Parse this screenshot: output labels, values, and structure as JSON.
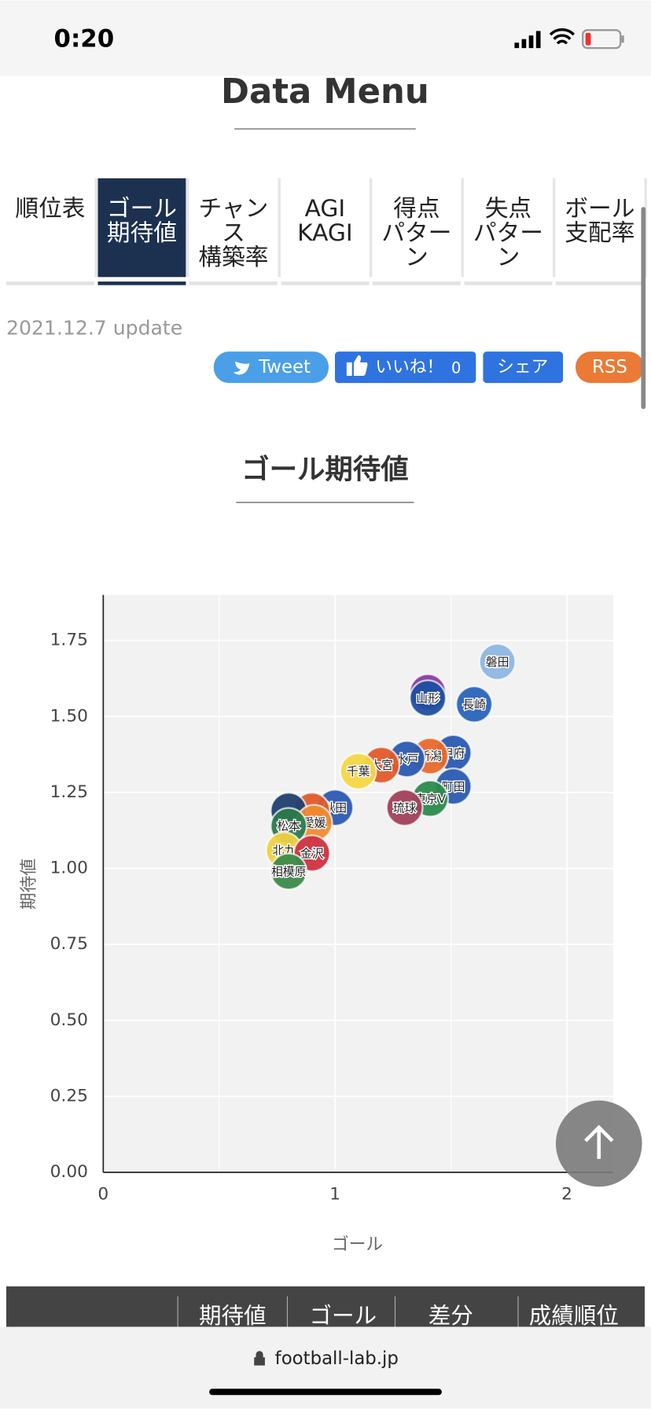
{
  "status_bar": {
    "time": "0:20"
  },
  "header": {
    "title": "Data Menu"
  },
  "tabs": [
    {
      "lines": [
        "順位表"
      ]
    },
    {
      "lines": [
        "ゴール",
        "期待値"
      ],
      "active": true
    },
    {
      "lines": [
        "チャン",
        "ス",
        "構築率"
      ]
    },
    {
      "lines": [
        "AGI",
        "KAGI"
      ]
    },
    {
      "lines": [
        "得点",
        "パター",
        "ン"
      ]
    },
    {
      "lines": [
        "失点",
        "パター",
        "ン"
      ]
    },
    {
      "lines": [
        "ボール",
        "支配率"
      ]
    }
  ],
  "update": "2021.12.7 update",
  "share": {
    "tweet": "Tweet",
    "like": "いいね！",
    "like_count": "0",
    "share": "シェア",
    "rss": "RSS"
  },
  "chart_data": {
    "type": "scatter",
    "title": "ゴール期待値",
    "x_label": "ゴール",
    "y_label": "期待値",
    "xlim": [
      0,
      2.2
    ],
    "ylim": [
      0,
      1.9
    ],
    "xticks": [
      0,
      1,
      2
    ],
    "yticks": [
      {
        "value": 0,
        "label": "0.00"
      },
      {
        "value": 0.25,
        "label": "0.25"
      },
      {
        "value": 0.5,
        "label": "0.50"
      },
      {
        "value": 0.75,
        "label": "0.75"
      },
      {
        "value": 1,
        "label": "1.00"
      },
      {
        "value": 1.25,
        "label": "1.25"
      },
      {
        "value": 1.5,
        "label": "1.50"
      },
      {
        "value": 1.75,
        "label": "1.75"
      }
    ],
    "grid": true,
    "labels": [
      "磐田",
      null,
      "山形",
      "長崎",
      "甲府",
      "新潟",
      "水戸",
      "大宮",
      "千葉",
      "町田",
      "東京V",
      "琉球",
      "秋田",
      null,
      null,
      "愛媛",
      "松本",
      "北九",
      "金沢",
      "相模原"
    ],
    "x": [
      1.7,
      1.4,
      1.4,
      1.6,
      1.51,
      1.41,
      1.31,
      1.2,
      1.1,
      1.51,
      1.41,
      1.3,
      1.0,
      0.9,
      0.8,
      0.91,
      0.8,
      0.78,
      0.9,
      0.8
    ],
    "values": [
      1.68,
      1.58,
      1.56,
      1.54,
      1.38,
      1.37,
      1.36,
      1.34,
      1.32,
      1.27,
      1.23,
      1.2,
      1.2,
      1.19,
      1.19,
      1.15,
      1.14,
      1.06,
      1.05,
      0.99
    ],
    "colors": [
      "#8cb6e2",
      "#8a3aa0",
      "#1f4fa0",
      "#2a63b8",
      "#2a5ab0",
      "#e8692a",
      "#2a5ab0",
      "#e05a2a",
      "#f3d743",
      "#2a5ab0",
      "#2a8a4a",
      "#a0405a",
      "#2a5ab0",
      "#e05a2a",
      "#1f3f70",
      "#f08a30",
      "#2a7a4a",
      "#f0d040",
      "#d03040",
      "#3a8a4a"
    ]
  },
  "table_header": [
    "期待値",
    "ゴール",
    "差分",
    "成績順位"
  ],
  "url": "football-lab.jp"
}
